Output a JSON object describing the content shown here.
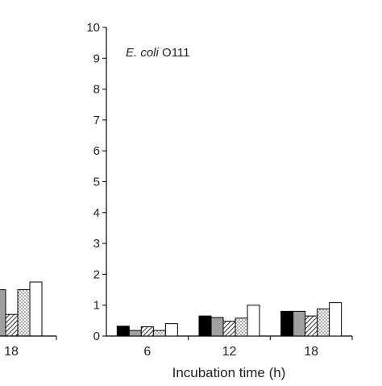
{
  "partial_left_panel": {
    "tick_label": "18",
    "bars": [
      1.5,
      0.7,
      1.5,
      1.75
    ],
    "styles": [
      "gray",
      "hatch",
      "dots",
      "white"
    ]
  },
  "chart_data": {
    "type": "bar",
    "title": "",
    "annotation": {
      "italic": "E. coli",
      "normal": " O111"
    },
    "xlabel": "Incubation time (h)",
    "ylabel": "",
    "ylim": [
      0,
      10
    ],
    "yticks": [
      0,
      1,
      2,
      3,
      4,
      5,
      6,
      7,
      8,
      9,
      10
    ],
    "categories": [
      "6",
      "12",
      "18"
    ],
    "series": [
      {
        "style": "black",
        "values": [
          0.32,
          0.65,
          0.8
        ]
      },
      {
        "style": "gray",
        "values": [
          0.18,
          0.6,
          0.8
        ]
      },
      {
        "style": "hatch",
        "values": [
          0.3,
          0.48,
          0.65
        ]
      },
      {
        "style": "dots",
        "values": [
          0.18,
          0.58,
          0.88
        ]
      },
      {
        "style": "white",
        "values": [
          0.4,
          1.0,
          1.08
        ]
      }
    ],
    "colors": {
      "black": "#000000",
      "gray": "#a0a0a0",
      "white": "#ffffff"
    },
    "grid": false,
    "legend": "none"
  }
}
